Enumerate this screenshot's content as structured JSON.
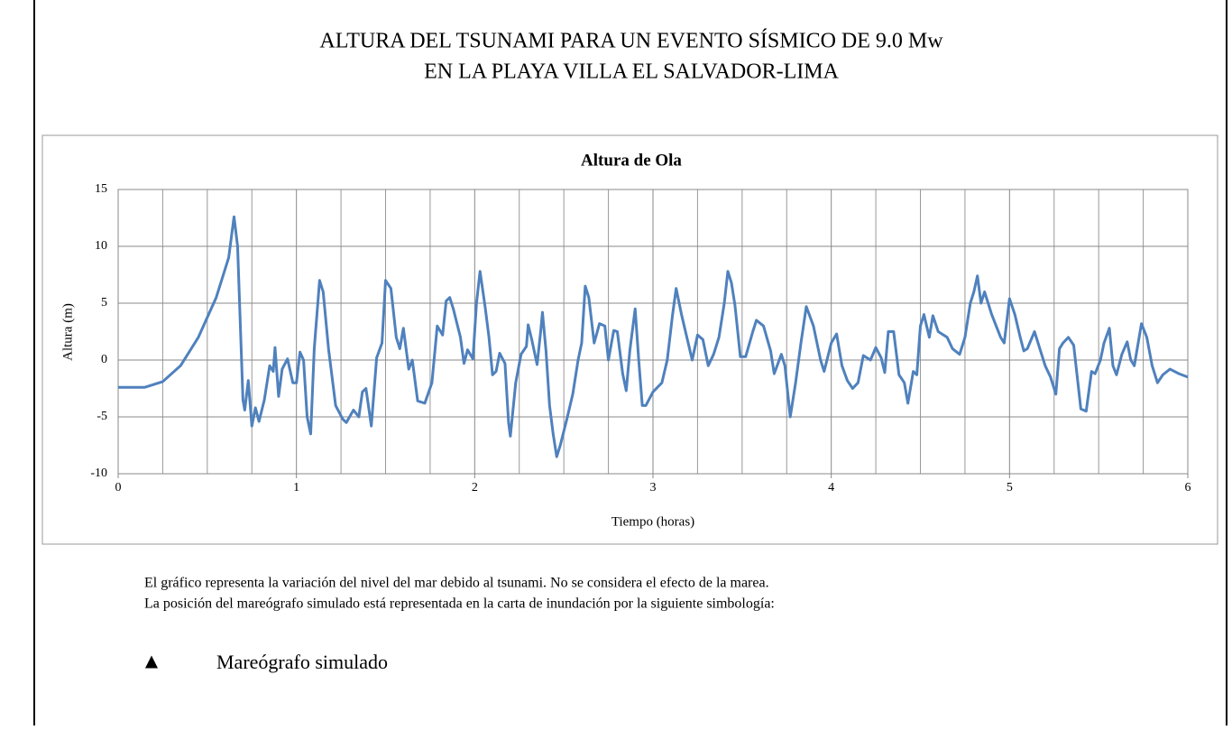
{
  "header": {
    "title_lines": [
      "ALTURA DEL TSUNAMI PARA UN EVENTO SÍSMICO DE 9.0 Mw",
      "EN LA PLAYA VILLA EL SALVADOR-LIMA"
    ]
  },
  "chart_data": {
    "type": "line",
    "title": "Altura de Ola",
    "x_label": "Tiempo (horas)",
    "y_label": "Altura (m)",
    "color": "#4f81bd",
    "grid": true,
    "xlim": [
      0,
      6
    ],
    "xticks": [
      0,
      1,
      2,
      3,
      4,
      5,
      6
    ],
    "ylim": [
      -10,
      15
    ],
    "yticks": [
      -10,
      -5,
      0,
      5,
      10,
      15
    ],
    "x": [
      0,
      0.15,
      0.25,
      0.35,
      0.45,
      0.55,
      0.62,
      0.65,
      0.67,
      0.7,
      0.71,
      0.73,
      0.75,
      0.77,
      0.79,
      0.82,
      0.85,
      0.87,
      0.88,
      0.9,
      0.92,
      0.95,
      0.98,
      1.0,
      1.02,
      1.04,
      1.06,
      1.08,
      1.1,
      1.13,
      1.15,
      1.18,
      1.22,
      1.26,
      1.28,
      1.32,
      1.35,
      1.37,
      1.39,
      1.42,
      1.45,
      1.48,
      1.5,
      1.53,
      1.56,
      1.58,
      1.6,
      1.63,
      1.65,
      1.68,
      1.72,
      1.76,
      1.79,
      1.82,
      1.84,
      1.86,
      1.88,
      1.92,
      1.94,
      1.96,
      1.99,
      2.01,
      2.03,
      2.06,
      2.08,
      2.1,
      2.12,
      2.14,
      2.17,
      2.19,
      2.2,
      2.23,
      2.26,
      2.29,
      2.3,
      2.32,
      2.35,
      2.37,
      2.38,
      2.4,
      2.42,
      2.44,
      2.46,
      2.48,
      2.52,
      2.55,
      2.58,
      2.6,
      2.62,
      2.64,
      2.67,
      2.7,
      2.73,
      2.75,
      2.78,
      2.8,
      2.83,
      2.85,
      2.87,
      2.9,
      2.92,
      2.94,
      2.96,
      3.0,
      3.05,
      3.08,
      3.11,
      3.13,
      3.16,
      3.19,
      3.22,
      3.25,
      3.28,
      3.31,
      3.34,
      3.37,
      3.4,
      3.42,
      3.44,
      3.46,
      3.49,
      3.52,
      3.56,
      3.58,
      3.62,
      3.66,
      3.68,
      3.72,
      3.74,
      3.77,
      3.8,
      3.83,
      3.86,
      3.9,
      3.94,
      3.96,
      4.0,
      4.03,
      4.06,
      4.09,
      4.12,
      4.15,
      4.18,
      4.22,
      4.25,
      4.28,
      4.3,
      4.32,
      4.35,
      4.38,
      4.41,
      4.43,
      4.46,
      4.48,
      4.5,
      4.52,
      4.55,
      4.57,
      4.6,
      4.65,
      4.68,
      4.72,
      4.75,
      4.78,
      4.8,
      4.82,
      4.84,
      4.86,
      4.9,
      4.95,
      4.97,
      5.0,
      5.03,
      5.06,
      5.08,
      5.1,
      5.14,
      5.17,
      5.2,
      5.23,
      5.26,
      5.28,
      5.3,
      5.33,
      5.36,
      5.38,
      5.4,
      5.43,
      5.46,
      5.48,
      5.51,
      5.53,
      5.56,
      5.58,
      5.6,
      5.63,
      5.66,
      5.68,
      5.7,
      5.74,
      5.77,
      5.8,
      5.83,
      5.86,
      5.9,
      5.95,
      6.0
    ],
    "values": [
      -2.4,
      -2.4,
      -1.9,
      -0.5,
      2.0,
      5.5,
      9.0,
      12.6,
      10,
      -3.5,
      -4.4,
      -1.8,
      -5.8,
      -4.2,
      -5.4,
      -3.5,
      -0.5,
      -1,
      1.1,
      -3.2,
      -0.8,
      0.1,
      -2,
      -2,
      0.7,
      0,
      -5,
      -6.5,
      1,
      7,
      6,
      1,
      -4,
      -5.2,
      -5.5,
      -4.4,
      -5,
      -2.8,
      -2.5,
      -5.8,
      0.2,
      1.5,
      7,
      6.3,
      2,
      1,
      2.8,
      -0.8,
      0,
      -3.6,
      -3.8,
      -2,
      3,
      2.2,
      5.2,
      5.5,
      4.5,
      2,
      -0.3,
      0.9,
      0.1,
      5,
      7.8,
      4.5,
      2,
      -1.3,
      -1,
      0.6,
      -0.3,
      -5.5,
      -6.7,
      -2,
      0.5,
      1.2,
      3.1,
      1.8,
      -0.4,
      2.5,
      4.2,
      0.8,
      -4,
      -6.5,
      -8.5,
      -7.5,
      -5,
      -3,
      0,
      1.5,
      6.5,
      5.5,
      1.5,
      3.2,
      3,
      0,
      2.6,
      2.5,
      -1.2,
      -2.7,
      0.8,
      4.5,
      0,
      -4,
      -4,
      -2.8,
      -2,
      0,
      4,
      6.3,
      4,
      2,
      0,
      2.2,
      1.8,
      -0.5,
      0.5,
      2,
      5,
      7.8,
      6.8,
      4.8,
      0.3,
      0.3,
      2.5,
      3.5,
      3,
      0.8,
      -1.2,
      0.5,
      -0.5,
      -5,
      -2,
      1.5,
      4.7,
      3,
      0,
      -1,
      1.5,
      2.3,
      -0.5,
      -1.8,
      -2.5,
      -2,
      0.4,
      0,
      1.1,
      0.2,
      -1.1,
      2.5,
      2.5,
      -1.3,
      -2,
      -3.8,
      -1,
      -1.3,
      3,
      4,
      2,
      3.9,
      2.5,
      2,
      1,
      0.5,
      2,
      5,
      6,
      7.4,
      5,
      6,
      4,
      2,
      1.5,
      5.4,
      4,
      2,
      0.8,
      1,
      2.5,
      1,
      -0.5,
      -1.5,
      -3,
      1,
      1.5,
      2,
      1.3,
      -1.5,
      -4.3,
      -4.5,
      -1,
      -1.2,
      0,
      1.5,
      2.8,
      -0.5,
      -1.3,
      0.5,
      1.6,
      0,
      -0.5,
      3.2,
      2,
      -0.5,
      -2,
      -1.3,
      -0.8,
      -1.2,
      -1.5
    ]
  },
  "notes": [
    "El gráfico representa la variación del nivel del mar debido al tsunami. No se considera el efecto de la marea.",
    "La posición del mareógrafo simulado está representada en la carta de inundación por la siguiente simbología:"
  ],
  "legend": {
    "symbol": "▲",
    "label": "Mareógrafo simulado"
  }
}
